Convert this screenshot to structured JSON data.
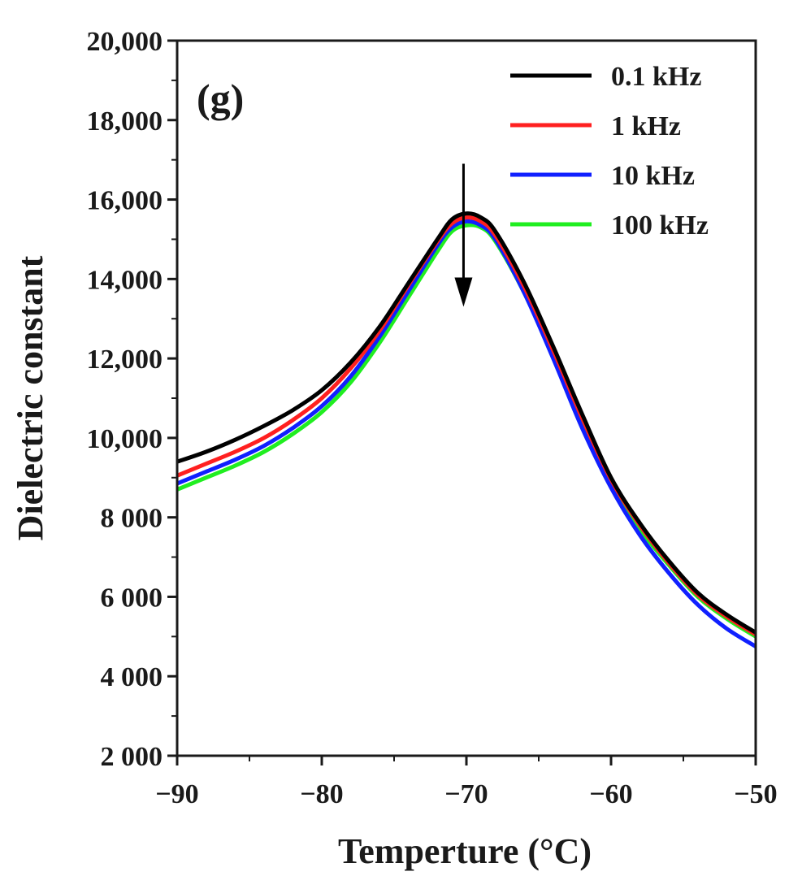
{
  "chart_data": {
    "type": "line",
    "panel_label": "(g)",
    "xlabel": "Temperture (°C)",
    "ylabel": "Dielectric constant",
    "xlim": [
      -90,
      -50
    ],
    "ylim": [
      2000,
      20000
    ],
    "x_ticks": [
      -90,
      -80,
      -70,
      -60,
      -50
    ],
    "x_tick_labels": [
      "−90",
      "−80",
      "−70",
      "−60",
      "−50"
    ],
    "y_ticks": [
      2000,
      4000,
      6000,
      8000,
      10000,
      12000,
      14000,
      16000,
      18000,
      20000
    ],
    "y_tick_labels": [
      "2 000",
      "4 000",
      "6 000",
      "8 000",
      "10,000",
      "12,000",
      "14,000",
      "16,000",
      "18,000",
      "20,000"
    ],
    "legend_position": "top-right",
    "annotation": {
      "type": "arrow",
      "direction": "down",
      "x": -70.2,
      "y_from": 16900,
      "y_to": 13300,
      "meaning": "increasing frequency"
    },
    "x": [
      -90,
      -88,
      -86,
      -84,
      -82,
      -80,
      -78,
      -76,
      -74,
      -72,
      -71,
      -70,
      -69,
      -68,
      -66,
      -64,
      -62,
      -60,
      -58,
      -56,
      -54,
      -52,
      -50
    ],
    "series": [
      {
        "name": "0.1 kHz",
        "color": "#000000",
        "values": [
          9400,
          9650,
          9950,
          10300,
          10700,
          11200,
          11900,
          12800,
          13900,
          15000,
          15500,
          15650,
          15550,
          15200,
          13900,
          12300,
          10600,
          9000,
          7850,
          6900,
          6100,
          5550,
          5100
        ]
      },
      {
        "name": "1 kHz",
        "color": "#ff2020",
        "values": [
          9050,
          9350,
          9650,
          10000,
          10450,
          11000,
          11750,
          12700,
          13850,
          14950,
          15400,
          15550,
          15450,
          15100,
          13800,
          12200,
          10500,
          8950,
          7800,
          6850,
          6050,
          5500,
          5050
        ]
      },
      {
        "name": "10 kHz",
        "color": "#1020ff",
        "values": [
          8850,
          9150,
          9450,
          9800,
          10250,
          10800,
          11550,
          12550,
          13700,
          14850,
          15300,
          15450,
          15350,
          15000,
          13650,
          12000,
          10250,
          8750,
          7550,
          6600,
          5800,
          5200,
          4750
        ]
      },
      {
        "name": "100 kHz",
        "color": "#20ee20",
        "values": [
          8700,
          9000,
          9300,
          9650,
          10100,
          10650,
          11400,
          12400,
          13550,
          14700,
          15200,
          15350,
          15300,
          14950,
          13650,
          12050,
          10350,
          8850,
          7700,
          6800,
          6000,
          5450,
          5000
        ]
      }
    ]
  }
}
